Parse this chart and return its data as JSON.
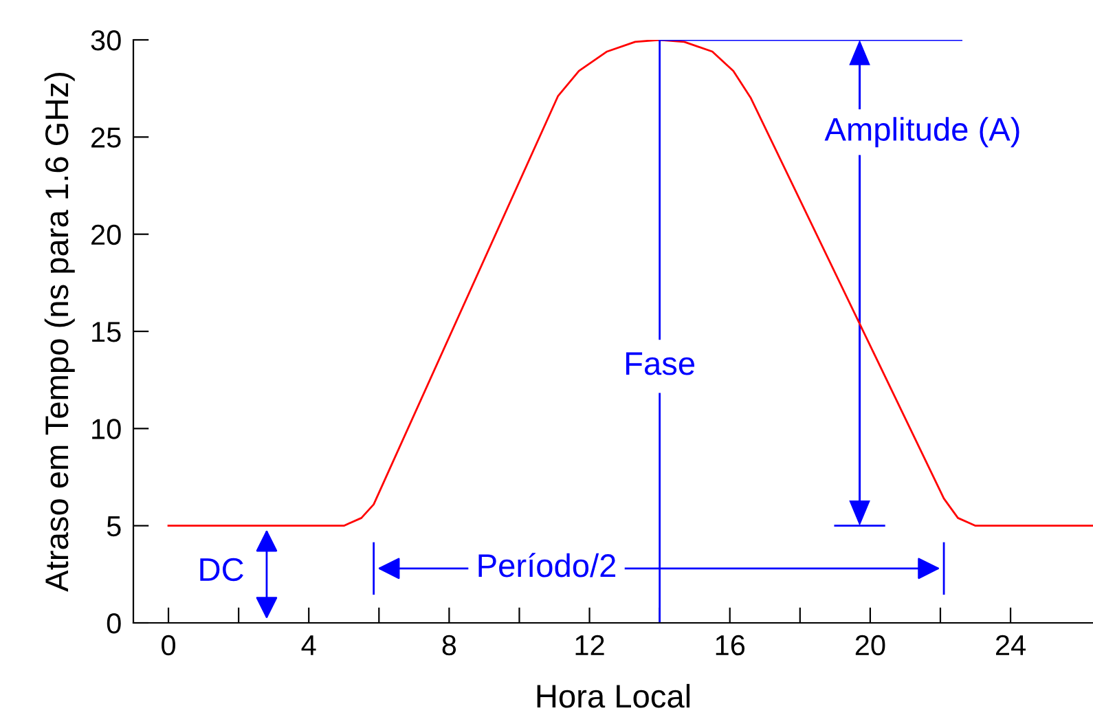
{
  "chart_data": {
    "type": "line",
    "xlabel": "Hora Local",
    "ylabel": "Atraso em Tempo (ns para 1.6 GHz)",
    "series": [
      {
        "color": "#ff0000",
        "x": [
          0,
          5,
          5.5,
          5.85,
          11.1,
          11.7,
          12.5,
          13.3,
          14,
          14.7,
          15.5,
          16.1,
          16.6,
          22.1,
          22.5,
          23,
          26.35
        ],
        "values": [
          5,
          5,
          5.4,
          6.1,
          27.1,
          28.4,
          29.4,
          29.9,
          30,
          29.9,
          29.4,
          28.4,
          27.0,
          6.4,
          5.4,
          5,
          5
        ]
      }
    ],
    "xlim": [
      -1,
      26.35
    ],
    "ylim": [
      0,
      30
    ],
    "xticks": [
      0,
      {
        "value": 2,
        "label": null
      },
      4,
      {
        "value": 6,
        "label": null
      },
      8,
      {
        "value": 10,
        "label": null
      },
      12,
      {
        "value": 14,
        "label": null
      },
      16,
      {
        "value": 18,
        "label": null
      },
      20,
      {
        "value": 22,
        "label": null
      },
      24
    ],
    "yticks": [
      0,
      5,
      10,
      15,
      20,
      25,
      30
    ],
    "ref_lines": [
      {
        "axis": "x",
        "value": 14,
        "label": "Fase",
        "color": "#0000ff"
      }
    ],
    "annotations": [
      "Amplitude (A)",
      "DC",
      "Período/2"
    ],
    "grid": false,
    "legend": false,
    "marker": "none",
    "line_style": "solid"
  }
}
